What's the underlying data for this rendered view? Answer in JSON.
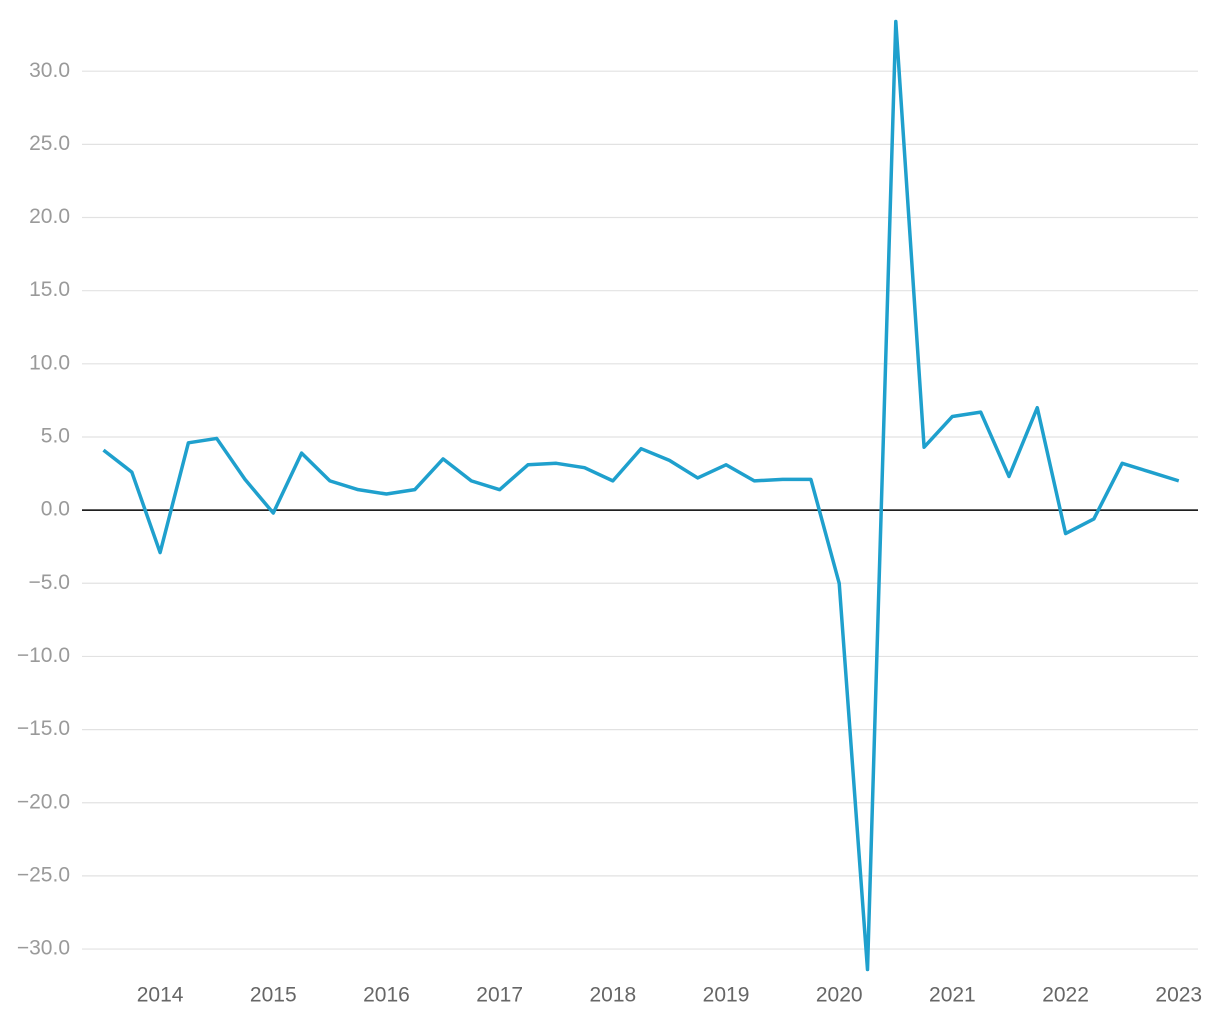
{
  "chart_data": {
    "type": "line",
    "x": [
      2013.5,
      2013.75,
      2014.0,
      2014.25,
      2014.5,
      2014.75,
      2015.0,
      2015.25,
      2015.5,
      2015.75,
      2016.0,
      2016.25,
      2016.5,
      2016.75,
      2017.0,
      2017.25,
      2017.5,
      2017.75,
      2018.0,
      2018.25,
      2018.5,
      2018.75,
      2019.0,
      2019.25,
      2019.5,
      2019.75,
      2020.0,
      2020.25,
      2020.5,
      2020.75,
      2021.0,
      2021.25,
      2021.5,
      2021.75,
      2022.0,
      2022.25,
      2022.5,
      2022.75,
      2023.0
    ],
    "series": [
      {
        "color": "#1fa0cd",
        "values": [
          4.1,
          2.6,
          -2.9,
          4.6,
          4.9,
          2.1,
          -0.2,
          3.9,
          2.0,
          1.4,
          1.1,
          1.4,
          3.5,
          2.0,
          1.4,
          3.1,
          3.2,
          2.9,
          2.0,
          4.2,
          3.4,
          2.2,
          3.1,
          2.0,
          2.1,
          2.1,
          -5.0,
          -31.4,
          33.4,
          4.3,
          6.4,
          6.7,
          2.3,
          7.0,
          -1.6,
          -0.6,
          3.2,
          2.6,
          2.0
        ]
      }
    ],
    "xlim": [
      2013.31,
      2023.17
    ],
    "xticks": [
      2014,
      2015,
      2016,
      2017,
      2018,
      2019,
      2020,
      2021,
      2022,
      2023
    ],
    "ylim": [
      -31.5,
      33.5
    ],
    "yticks": [
      {
        "value": -30,
        "label": "−30.0"
      },
      {
        "value": -25,
        "label": "−25.0"
      },
      {
        "value": -20,
        "label": "−20.0"
      },
      {
        "value": -15,
        "label": "−15.0"
      },
      {
        "value": -10,
        "label": "−10.0"
      },
      {
        "value": -5,
        "label": "−5.0"
      },
      {
        "value": 0,
        "label": "0.0"
      },
      {
        "value": 5,
        "label": "5.0"
      },
      {
        "value": 10,
        "label": "10.0"
      },
      {
        "value": 15,
        "label": "15.0"
      },
      {
        "value": 20,
        "label": "20.0"
      },
      {
        "value": 25,
        "label": "25.0"
      },
      {
        "value": 30,
        "label": "30.0"
      }
    ],
    "grid": true
  }
}
